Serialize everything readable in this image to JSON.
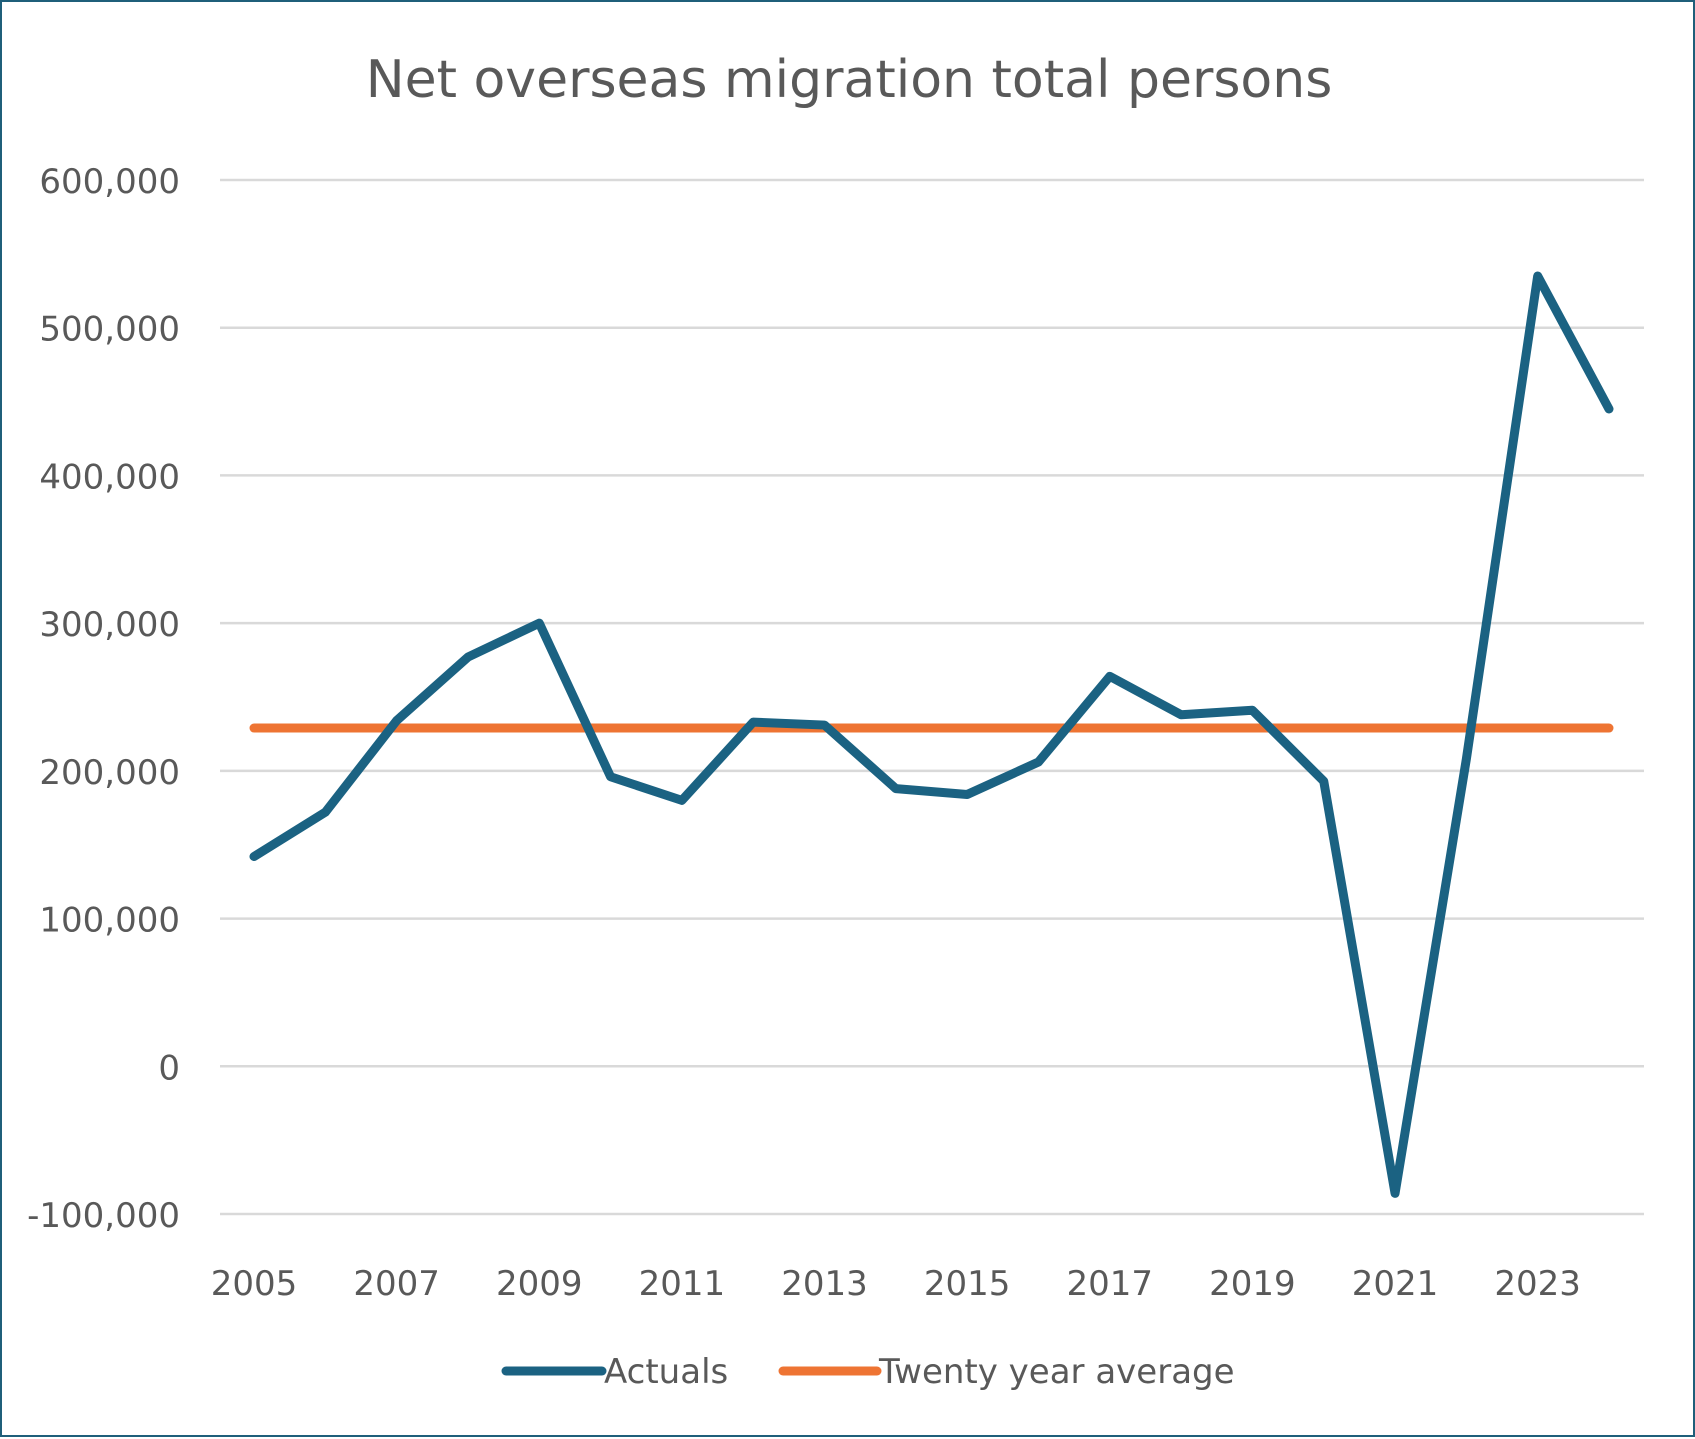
{
  "chart_data": {
    "type": "line",
    "title": "Net overseas migration total persons",
    "xlabel": "",
    "ylabel": "",
    "x": [
      2005,
      2006,
      2007,
      2008,
      2009,
      2010,
      2011,
      2012,
      2013,
      2014,
      2015,
      2016,
      2017,
      2018,
      2019,
      2020,
      2021,
      2022,
      2023,
      2024
    ],
    "xticks": [
      "2005",
      "2007",
      "2009",
      "2011",
      "2013",
      "2015",
      "2017",
      "2019",
      "2021",
      "2023"
    ],
    "yticks": [
      "-100,000",
      "0",
      "100,000",
      "200,000",
      "300,000",
      "400,000",
      "500,000",
      "600,000"
    ],
    "ytick_values": [
      -100000,
      0,
      100000,
      200000,
      300000,
      400000,
      500000,
      600000
    ],
    "ylim": [
      -100000,
      600000
    ],
    "grid": true,
    "legend_position": "bottom",
    "series": [
      {
        "name": "Actuals",
        "color": "#1b6282",
        "values": [
          142000,
          172000,
          234000,
          277000,
          300000,
          196000,
          180000,
          233000,
          231000,
          188000,
          184000,
          206000,
          264000,
          238000,
          241000,
          193000,
          -86000,
          208000,
          535000,
          445000
        ]
      },
      {
        "name": "Twenty year average",
        "color": "#ee7433",
        "values": [
          229000,
          229000,
          229000,
          229000,
          229000,
          229000,
          229000,
          229000,
          229000,
          229000,
          229000,
          229000,
          229000,
          229000,
          229000,
          229000,
          229000,
          229000,
          229000,
          229000
        ]
      }
    ]
  }
}
